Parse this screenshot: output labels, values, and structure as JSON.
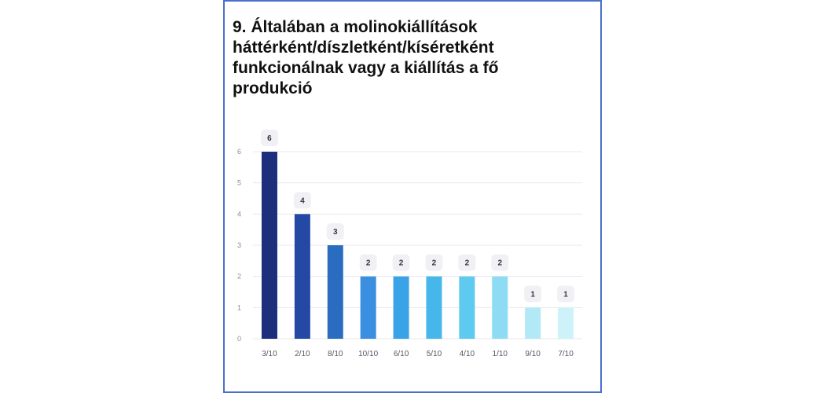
{
  "title": "9. Általában a molinokiállítások háttérként/díszletként/kíséretként funkcionálnak vagy a kiállítás a fő produkció",
  "chart_data": {
    "type": "bar",
    "categories": [
      "3/10",
      "2/10",
      "8/10",
      "10/10",
      "6/10",
      "5/10",
      "4/10",
      "1/10",
      "9/10",
      "7/10"
    ],
    "values": [
      6,
      4,
      3,
      2,
      2,
      2,
      2,
      2,
      1,
      1
    ],
    "ylim": [
      0,
      6
    ],
    "yticks": [
      0,
      1,
      2,
      3,
      4,
      5,
      6
    ],
    "grid": true,
    "data_labels": true,
    "colors": [
      "#1c2e7c",
      "#2449a4",
      "#2a6cbf",
      "#3b8fe0",
      "#3aa3e8",
      "#46b7ea",
      "#5fcaf0",
      "#8ddcf4",
      "#b2e9f6",
      "#cdf2fa"
    ]
  }
}
